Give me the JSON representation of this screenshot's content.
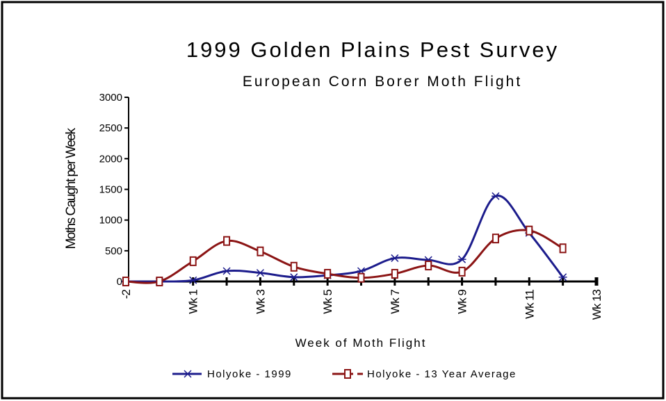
{
  "chart_data": {
    "type": "line",
    "title": "1999 Golden Plains Pest Survey",
    "subtitle": "European Corn Borer Moth Flight",
    "y_label": "Moths Caught per Week",
    "x_label": "Week of Moth Flight",
    "categories": [
      "-2",
      null,
      "Wk 1",
      null,
      "Wk 3",
      null,
      "Wk 5",
      null,
      "Wk 7",
      null,
      "Wk 9",
      null,
      "Wk 11",
      null,
      "Wk 13"
    ],
    "series": [
      {
        "name": "Holyoke - 1999",
        "color": "#1c1c8c",
        "marker": "x",
        "values": [
          0,
          0,
          20,
          170,
          140,
          70,
          100,
          170,
          380,
          350,
          360,
          1390,
          790,
          70,
          null
        ]
      },
      {
        "name": "Holyoke - 13 Year Average",
        "color": "#8b1414",
        "marker": "square",
        "values": [
          0,
          0,
          330,
          660,
          490,
          240,
          125,
          60,
          125,
          260,
          160,
          700,
          830,
          540,
          null
        ]
      }
    ],
    "ylim": [
      0,
      3000
    ],
    "yticks": [
      0,
      500,
      1000,
      1500,
      2000,
      2500,
      3000
    ],
    "legend": "bottom"
  }
}
